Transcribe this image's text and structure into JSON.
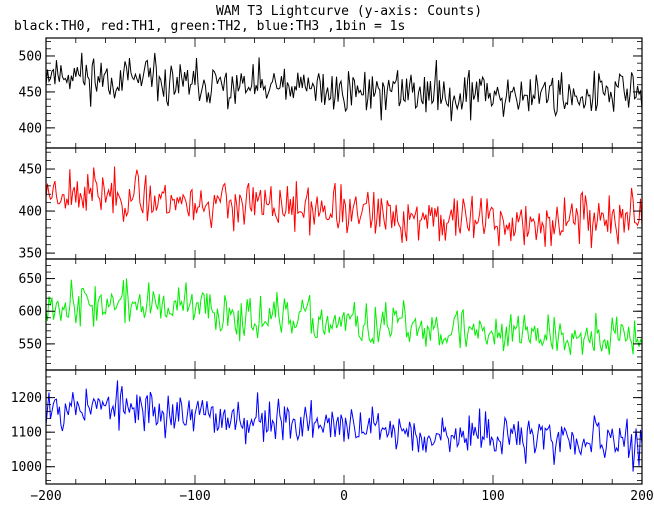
{
  "chart_data": {
    "type": "line",
    "title": "WAM T3 Lightcurve (y-axis: Counts)",
    "subtitle": "black:TH0, red:TH1, green:TH2, blue:TH3 ,1bin = 1s",
    "x": {
      "range": [
        -200,
        200
      ],
      "ticks": [
        -200,
        -100,
        0,
        100,
        200
      ],
      "tick_labels": [
        "−200",
        "−100",
        "0",
        "100",
        "200"
      ]
    },
    "panels": [
      {
        "name": "TH0",
        "color": "#000000",
        "ylim": [
          372,
          525
        ],
        "yticks": [
          400,
          450,
          500
        ],
        "ytick_labels": [
          "400",
          "450",
          "500"
        ],
        "trend": [
          [
            -200,
            478
          ],
          [
            -150,
            468
          ],
          [
            -100,
            458
          ],
          [
            -50,
            455
          ],
          [
            0,
            452
          ],
          [
            50,
            450
          ],
          [
            100,
            448
          ],
          [
            150,
            447
          ],
          [
            200,
            450
          ]
        ],
        "noise_amp": 42,
        "seed": 11
      },
      {
        "name": "TH1",
        "color": "#ff0000",
        "ylim": [
          343,
          475
        ],
        "yticks": [
          350,
          400,
          450
        ],
        "ytick_labels": [
          "350",
          "400",
          "450"
        ],
        "trend": [
          [
            -200,
            425
          ],
          [
            -150,
            420
          ],
          [
            -100,
            410
          ],
          [
            -50,
            405
          ],
          [
            0,
            398
          ],
          [
            50,
            392
          ],
          [
            100,
            390
          ],
          [
            120,
            380
          ],
          [
            150,
            392
          ],
          [
            200,
            390
          ]
        ],
        "noise_amp": 38,
        "seed": 23
      },
      {
        "name": "TH2",
        "color": "#00ee00",
        "ylim": [
          510,
          680
        ],
        "yticks": [
          550,
          600,
          650
        ],
        "ytick_labels": [
          "550",
          "600",
          "650"
        ],
        "trend": [
          [
            -200,
            615
          ],
          [
            -150,
            612
          ],
          [
            -100,
            605
          ],
          [
            -50,
            590
          ],
          [
            0,
            580
          ],
          [
            50,
            575
          ],
          [
            100,
            570
          ],
          [
            150,
            565
          ],
          [
            200,
            558
          ]
        ],
        "noise_amp": 45,
        "seed": 37
      },
      {
        "name": "TH3",
        "color": "#0000ff",
        "ylim": [
          950,
          1280
        ],
        "yticks": [
          1000,
          1100,
          1200
        ],
        "ytick_labels": [
          "1000",
          "1100",
          "1200"
        ],
        "trend": [
          [
            -200,
            1185
          ],
          [
            -150,
            1170
          ],
          [
            -100,
            1150
          ],
          [
            -50,
            1135
          ],
          [
            0,
            1115
          ],
          [
            50,
            1100
          ],
          [
            100,
            1085
          ],
          [
            150,
            1075
          ],
          [
            200,
            1070
          ]
        ],
        "noise_amp": 85,
        "seed": 53
      }
    ],
    "bin_seconds": 1,
    "grid": false
  }
}
